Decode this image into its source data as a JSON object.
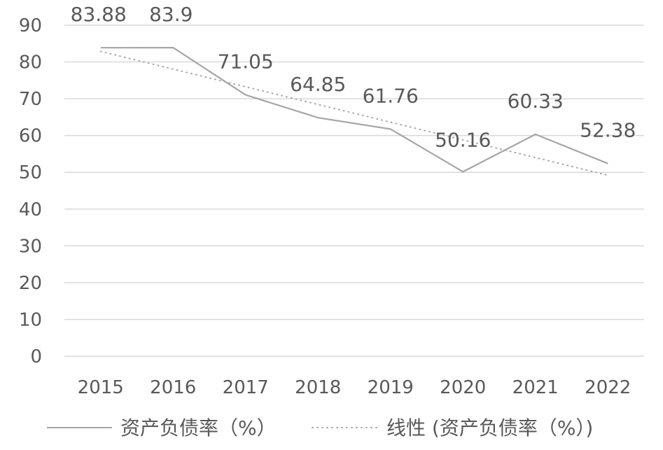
{
  "chart_data": {
    "type": "line",
    "categories": [
      "2015",
      "2016",
      "2017",
      "2018",
      "2019",
      "2020",
      "2021",
      "2022"
    ],
    "series": [
      {
        "name": "资产负债率（%）",
        "values": [
          83.88,
          83.9,
          71.05,
          64.85,
          61.76,
          50.16,
          60.33,
          52.38
        ],
        "color": "#a6a6a6",
        "style": "solid",
        "data_labels": [
          "83.88",
          "83.9",
          "71.05",
          "64.85",
          "61.76",
          "50.16",
          "60.33",
          "52.38"
        ]
      },
      {
        "name": "线性 (资产负债率（%）)",
        "type": "trendline-linear",
        "color": "#a6a6a6",
        "style": "dotted"
      }
    ],
    "yticks": [
      "0",
      "10",
      "20",
      "30",
      "40",
      "50",
      "60",
      "70",
      "80",
      "90"
    ],
    "ylim": [
      0,
      90
    ],
    "grid": true,
    "legend_position": "bottom",
    "title": "",
    "xlabel": "",
    "ylabel": ""
  }
}
